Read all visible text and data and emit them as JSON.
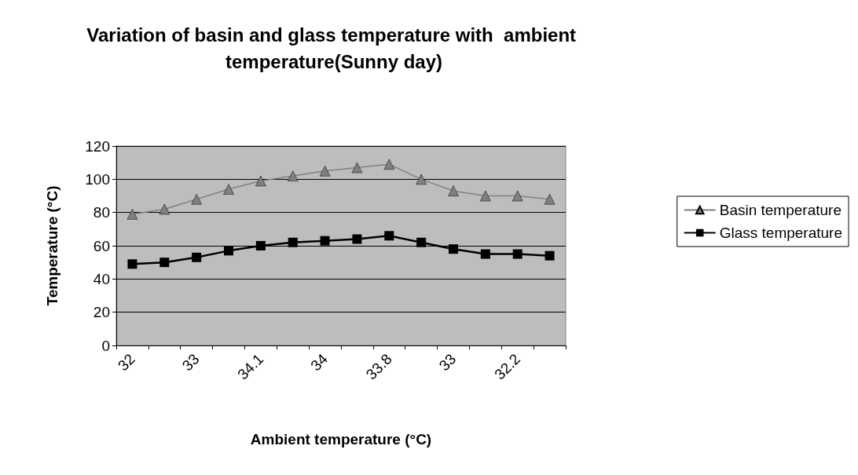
{
  "chart_data": {
    "type": "line",
    "title": "Variation of basin and glass temperature with  ambient temperature(Sunny day)",
    "xlabel": "Ambient temperature (°C)",
    "ylabel": "Temperature (°C)",
    "categories": [
      "32",
      null,
      "33",
      null,
      "34.1",
      null,
      "34",
      null,
      "33.8",
      null,
      "33",
      null,
      "32.2",
      null
    ],
    "series": [
      {
        "name": "Basin temperature",
        "color": "#808080",
        "marker": "triangle",
        "values": [
          79,
          82,
          88,
          94,
          99,
          102,
          105,
          107,
          109,
          100,
          93,
          90,
          90,
          88
        ]
      },
      {
        "name": "Glass temperature",
        "color": "#000000",
        "marker": "square",
        "values": [
          49,
          50,
          53,
          57,
          60,
          62,
          63,
          64,
          66,
          62,
          58,
          55,
          55,
          54
        ]
      }
    ],
    "ylim": [
      0,
      120
    ],
    "yticks": [
      0,
      20,
      40,
      60,
      80,
      100,
      120
    ],
    "grid": "y",
    "legend": "right"
  }
}
